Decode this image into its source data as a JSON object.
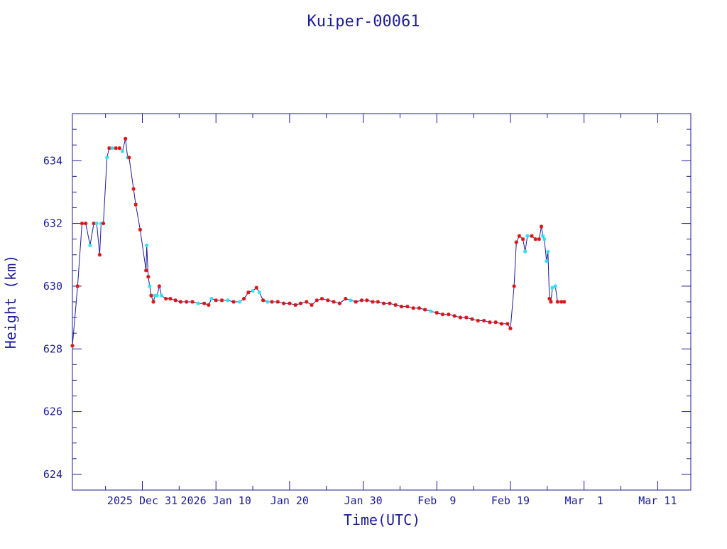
{
  "colors": {
    "text": "#1c1c9a",
    "axis": "#1c1c9a",
    "line": "#1c1c9a",
    "marker_red": "#dd1111",
    "marker_cyan": "#33e0f0",
    "background": "#ffffff"
  },
  "chart_data": {
    "type": "line",
    "title": "Kuiper-00061",
    "xlabel": "Time(UTC)",
    "ylabel": "Height (km)",
    "ylim": [
      623.5,
      635.5
    ],
    "xlim_days": [
      -9.5,
      74.5
    ],
    "grid": false,
    "legend": "none",
    "yticks": [
      624,
      626,
      628,
      630,
      632,
      634
    ],
    "xtick_labels": [
      "2025 Dec 31",
      "2026 Jan 10",
      "Jan 20",
      "Jan 30",
      "Feb  9",
      "Feb 19",
      "Mar  1",
      "Mar 11"
    ],
    "xtick_days": [
      0,
      10,
      20,
      30,
      40,
      50,
      60,
      70
    ],
    "x_reference": "2025 Dec 31",
    "series": [
      {
        "marker_colors": [
          "red",
          "cyan"
        ],
        "points": [
          [
            -9.5,
            628.1,
            "r"
          ],
          [
            -8.8,
            630.0,
            "r"
          ],
          [
            -8.2,
            632.0,
            "r"
          ],
          [
            -7.7,
            632.0,
            "r"
          ],
          [
            -7.1,
            631.3,
            "c"
          ],
          [
            -6.6,
            632.0,
            "r"
          ],
          [
            -6.2,
            632.0,
            "c"
          ],
          [
            -5.8,
            631.0,
            "r"
          ],
          [
            -5.6,
            632.0,
            "c"
          ],
          [
            -5.3,
            632.0,
            "r"
          ],
          [
            -4.8,
            634.1,
            "c"
          ],
          [
            -4.5,
            634.4,
            "r"
          ],
          [
            -4.1,
            634.4,
            "c"
          ],
          [
            -3.6,
            634.4,
            "r"
          ],
          [
            -3.1,
            634.4,
            "r"
          ],
          [
            -2.7,
            634.3,
            "c"
          ],
          [
            -2.3,
            634.7,
            "r"
          ],
          [
            -2.0,
            634.1,
            "c"
          ],
          [
            -1.8,
            634.1,
            "r"
          ],
          [
            -1.2,
            633.1,
            "r"
          ],
          [
            -0.9,
            632.6,
            "r"
          ],
          [
            -0.3,
            631.8,
            "r"
          ],
          [
            0.5,
            630.5,
            "r"
          ],
          [
            0.6,
            631.3,
            "c"
          ],
          [
            0.8,
            630.3,
            "r"
          ],
          [
            1.0,
            630.0,
            "c"
          ],
          [
            1.2,
            629.7,
            "r"
          ],
          [
            1.5,
            629.5,
            "r"
          ],
          [
            1.7,
            629.7,
            "c"
          ],
          [
            2.0,
            629.7,
            "c"
          ],
          [
            2.3,
            630.0,
            "r"
          ],
          [
            2.6,
            629.7,
            "c"
          ],
          [
            3.2,
            629.6,
            "r"
          ],
          [
            3.8,
            629.6,
            "r"
          ],
          [
            4.5,
            629.55,
            "r"
          ],
          [
            5.2,
            629.5,
            "r"
          ],
          [
            6.0,
            629.5,
            "r"
          ],
          [
            6.8,
            629.5,
            "r"
          ],
          [
            7.6,
            629.45,
            "c"
          ],
          [
            8.4,
            629.45,
            "r"
          ],
          [
            9.0,
            629.4,
            "r"
          ],
          [
            9.4,
            629.6,
            "c"
          ],
          [
            10.0,
            629.55,
            "r"
          ],
          [
            10.8,
            629.55,
            "r"
          ],
          [
            11.6,
            629.55,
            "c"
          ],
          [
            12.4,
            629.5,
            "r"
          ],
          [
            13.2,
            629.5,
            "c"
          ],
          [
            13.8,
            629.6,
            "r"
          ],
          [
            14.4,
            629.8,
            "r"
          ],
          [
            15.0,
            629.85,
            "c"
          ],
          [
            15.5,
            629.95,
            "r"
          ],
          [
            15.9,
            629.8,
            "c"
          ],
          [
            16.4,
            629.55,
            "r"
          ],
          [
            17.0,
            629.5,
            "c"
          ],
          [
            17.6,
            629.5,
            "r"
          ],
          [
            18.4,
            629.5,
            "r"
          ],
          [
            19.2,
            629.45,
            "r"
          ],
          [
            20.0,
            629.45,
            "r"
          ],
          [
            20.8,
            629.4,
            "r"
          ],
          [
            21.5,
            629.45,
            "r"
          ],
          [
            22.3,
            629.5,
            "r"
          ],
          [
            23.0,
            629.4,
            "r"
          ],
          [
            23.7,
            629.55,
            "r"
          ],
          [
            24.4,
            629.6,
            "r"
          ],
          [
            25.2,
            629.55,
            "r"
          ],
          [
            26.0,
            629.5,
            "r"
          ],
          [
            26.8,
            629.45,
            "r"
          ],
          [
            27.6,
            629.6,
            "r"
          ],
          [
            28.3,
            629.55,
            "c"
          ],
          [
            29.0,
            629.5,
            "r"
          ],
          [
            29.8,
            629.55,
            "r"
          ],
          [
            30.5,
            629.55,
            "r"
          ],
          [
            31.3,
            629.5,
            "r"
          ],
          [
            32.0,
            629.5,
            "r"
          ],
          [
            32.8,
            629.45,
            "r"
          ],
          [
            33.6,
            629.45,
            "r"
          ],
          [
            34.4,
            629.4,
            "r"
          ],
          [
            35.2,
            629.35,
            "r"
          ],
          [
            36.0,
            629.35,
            "r"
          ],
          [
            36.8,
            629.3,
            "r"
          ],
          [
            37.6,
            629.3,
            "r"
          ],
          [
            38.4,
            629.25,
            "r"
          ],
          [
            39.2,
            629.2,
            "c"
          ],
          [
            40.0,
            629.15,
            "r"
          ],
          [
            40.8,
            629.1,
            "r"
          ],
          [
            41.6,
            629.1,
            "r"
          ],
          [
            42.4,
            629.05,
            "r"
          ],
          [
            43.2,
            629.0,
            "r"
          ],
          [
            44.0,
            629.0,
            "r"
          ],
          [
            44.8,
            628.95,
            "r"
          ],
          [
            45.6,
            628.9,
            "r"
          ],
          [
            46.4,
            628.9,
            "r"
          ],
          [
            47.2,
            628.85,
            "r"
          ],
          [
            48.0,
            628.85,
            "r"
          ],
          [
            48.8,
            628.8,
            "r"
          ],
          [
            49.6,
            628.8,
            "r"
          ],
          [
            50.0,
            628.65,
            "r"
          ],
          [
            50.5,
            630.0,
            "r"
          ],
          [
            50.8,
            631.4,
            "r"
          ],
          [
            51.2,
            631.6,
            "r"
          ],
          [
            51.7,
            631.5,
            "r"
          ],
          [
            52.0,
            631.1,
            "c"
          ],
          [
            52.3,
            631.6,
            "c"
          ],
          [
            52.9,
            631.6,
            "r"
          ],
          [
            53.4,
            631.5,
            "r"
          ],
          [
            53.9,
            631.5,
            "r"
          ],
          [
            54.2,
            631.9,
            "r"
          ],
          [
            54.4,
            631.6,
            "c"
          ],
          [
            54.6,
            631.5,
            "c"
          ],
          [
            54.9,
            630.8,
            "c"
          ],
          [
            55.1,
            631.1,
            "c"
          ],
          [
            55.3,
            629.6,
            "r"
          ],
          [
            55.5,
            629.5,
            "r"
          ],
          [
            55.7,
            629.95,
            "c"
          ],
          [
            56.1,
            630.0,
            "c"
          ],
          [
            56.4,
            629.5,
            "r"
          ],
          [
            56.9,
            629.5,
            "r"
          ],
          [
            57.3,
            629.5,
            "r"
          ]
        ]
      }
    ]
  }
}
